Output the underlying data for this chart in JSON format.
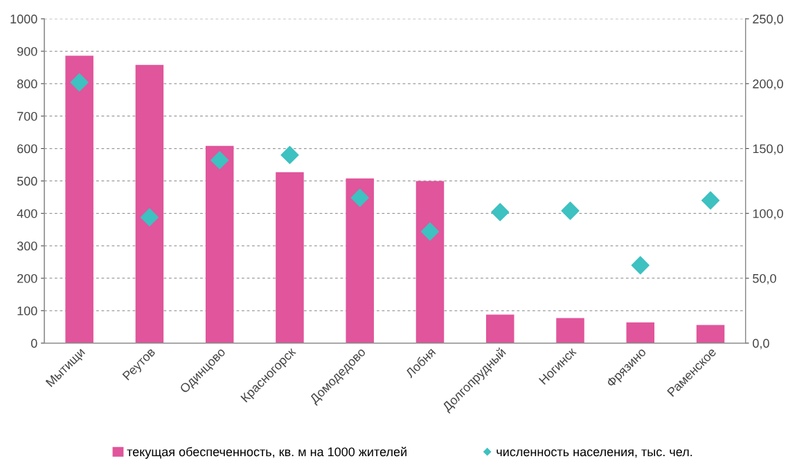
{
  "chart_data": {
    "type": "bar",
    "categories": [
      "Мытищи",
      "Реутов",
      "Одинцово",
      "Красногорск",
      "Домодедово",
      "Лобня",
      "Долгопрудный",
      "Ногинск",
      "Фрязино",
      "Раменское"
    ],
    "series": [
      {
        "name": "текущая обеспеченность, кв. м на 1000 жителей",
        "color": "#e0559b",
        "values": [
          886,
          858,
          608,
          527,
          508,
          500,
          88,
          77,
          64,
          56
        ]
      },
      {
        "name": "численность населения, тыс. чел.",
        "type": "scatter",
        "axis": "y2",
        "color": "#3ec1c1",
        "values": [
          201,
          97,
          141,
          145,
          112,
          86,
          101,
          102,
          60,
          110
        ]
      }
    ],
    "ylim": [
      0,
      1000
    ],
    "yticks": [
      0,
      100,
      200,
      300,
      400,
      500,
      600,
      700,
      800,
      900,
      1000
    ],
    "y2lim": [
      0,
      250
    ],
    "y2ticks": [
      {
        "value": 0,
        "label": "0,0"
      },
      {
        "value": 50,
        "label": "50,0"
      },
      {
        "value": 100,
        "label": "100,0"
      },
      {
        "value": 150,
        "label": "150,0"
      },
      {
        "value": 200,
        "label": "200,0"
      },
      {
        "value": 250,
        "label": "250,0"
      }
    ],
    "grid": "y",
    "legend": "bottom",
    "marker": "diamond"
  }
}
